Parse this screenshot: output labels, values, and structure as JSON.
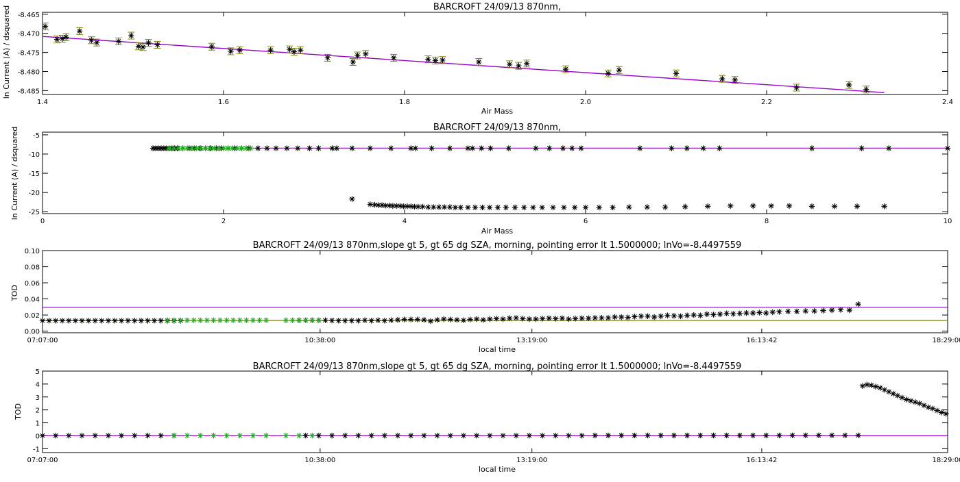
{
  "colors": {
    "axis": "#000000",
    "fit_line": "#9900cc",
    "error_bar": "#808000",
    "selected_points": "#22aa22",
    "points": "#000000",
    "baseline": "#808000"
  },
  "chart_data": [
    {
      "type": "scatter",
      "title": "BARCROFT 24/09/13 870nm,",
      "xlabel": "Air Mass",
      "ylabel": "ln Current (A) / dsquared",
      "xlim": [
        1.4,
        2.4
      ],
      "ylim": [
        -8.486,
        -8.4645
      ],
      "xticks": [
        "1.4",
        "1.6",
        "1.8",
        "2.0",
        "2.2",
        "2.4"
      ],
      "xtick_values": [
        1.4,
        1.6,
        1.8,
        2.0,
        2.2,
        2.4
      ],
      "yticks": [
        "-8.465",
        "-8.470",
        "-8.475",
        "-8.480",
        "-8.485"
      ],
      "ytick_values": [
        -8.465,
        -8.47,
        -8.475,
        -8.48,
        -8.485
      ],
      "fit_line": {
        "x": [
          1.4,
          2.33
        ],
        "y": [
          -8.4708,
          -8.4855
        ]
      },
      "errorbar_halfwidth": 0.0009,
      "x": [
        1.403,
        1.416,
        1.422,
        1.426,
        1.441,
        1.454,
        1.46,
        1.484,
        1.498,
        1.506,
        1.511,
        1.517,
        1.527,
        1.587,
        1.608,
        1.618,
        1.652,
        1.673,
        1.678,
        1.685,
        1.715,
        1.743,
        1.748,
        1.757,
        1.788,
        1.826,
        1.834,
        1.842,
        1.882,
        1.916,
        1.926,
        1.935,
        1.978,
        2.025,
        2.037,
        2.1,
        2.151,
        2.165,
        2.233,
        2.291,
        2.31
      ],
      "y": [
        -8.4682,
        -8.4716,
        -8.4714,
        -8.471,
        -8.4694,
        -8.4718,
        -8.4724,
        -8.4721,
        -8.4706,
        -8.4734,
        -8.4736,
        -8.4725,
        -8.473,
        -8.4735,
        -8.4747,
        -8.4744,
        -8.4744,
        -8.4742,
        -8.4748,
        -8.4744,
        -8.4764,
        -8.4775,
        -8.4758,
        -8.4754,
        -8.4764,
        -8.4768,
        -8.4771,
        -8.477,
        -8.4775,
        -8.4781,
        -8.4785,
        -8.4779,
        -8.4794,
        -8.4805,
        -8.4796,
        -8.4805,
        -8.4819,
        -8.4822,
        -8.4842,
        -8.4835,
        -8.4847
      ]
    },
    {
      "type": "scatter",
      "title": "BARCROFT 24/09/13 870nm,",
      "xlabel": "Air Mass",
      "ylabel": "ln Current (A) / dsquared",
      "xlim": [
        0,
        10
      ],
      "ylim": [
        -25.5,
        -4.3
      ],
      "xticks": [
        "0",
        "2",
        "4",
        "6",
        "8",
        "10"
      ],
      "xtick_values": [
        0,
        2,
        4,
        6,
        8,
        10
      ],
      "yticks": [
        "-5",
        "-10",
        "-15",
        "-20",
        "-25"
      ],
      "ytick_values": [
        -5,
        -10,
        -15,
        -20,
        -25
      ],
      "fit_line": {
        "x": [
          1.2,
          10
        ],
        "y": [
          -8.45,
          -8.45
        ]
      },
      "upper_branch": {
        "x": [
          1.22,
          1.25,
          1.28,
          1.31,
          1.34,
          1.37,
          1.4,
          1.43,
          1.46,
          1.49,
          1.55,
          1.62,
          1.68,
          1.74,
          1.8,
          1.86,
          1.92,
          1.98,
          2.05,
          2.12,
          2.2,
          2.28,
          2.38,
          2.48,
          2.58,
          2.7,
          2.82,
          2.95,
          3.05,
          3.2,
          3.25,
          3.42,
          3.62,
          3.85,
          4.07,
          4.12,
          4.3,
          4.5,
          4.7,
          4.75,
          4.85,
          4.95,
          5.15,
          5.45,
          5.6,
          5.75,
          5.85,
          5.95,
          6.6,
          6.95,
          7.12,
          7.3,
          7.48,
          8.5,
          9.05,
          9.35,
          10.0
        ],
        "y": [
          -8.5,
          -8.5,
          -8.5,
          -8.5,
          -8.5,
          -8.5,
          -8.5,
          -8.5,
          -8.5,
          -8.5,
          -8.5,
          -8.5,
          -8.5,
          -8.5,
          -8.5,
          -8.5,
          -8.5,
          -8.5,
          -8.5,
          -8.5,
          -8.5,
          -8.5,
          -8.5,
          -8.5,
          -8.5,
          -8.5,
          -8.5,
          -8.5,
          -8.5,
          -8.5,
          -8.5,
          -8.5,
          -8.5,
          -8.5,
          -8.5,
          -8.5,
          -8.5,
          -8.5,
          -8.5,
          -8.5,
          -8.5,
          -8.5,
          -8.5,
          -8.5,
          -8.5,
          -8.5,
          -8.5,
          -8.5,
          -8.5,
          -8.5,
          -8.5,
          -8.5,
          -8.5,
          -8.5,
          -8.5,
          -8.5,
          -8.5
        ]
      },
      "upper_branch_selected": {
        "x": [
          1.4,
          1.45,
          1.5,
          1.55,
          1.6,
          1.65,
          1.7,
          1.75,
          1.8,
          1.85,
          1.9,
          1.95,
          2.0,
          2.05,
          2.1,
          2.15,
          2.2,
          2.25,
          2.3
        ],
        "y": [
          -8.5,
          -8.5,
          -8.5,
          -8.5,
          -8.5,
          -8.5,
          -8.5,
          -8.5,
          -8.5,
          -8.5,
          -8.5,
          -8.5,
          -8.5,
          -8.5,
          -8.5,
          -8.5,
          -8.5,
          -8.5,
          -8.5
        ]
      },
      "lower_branch": {
        "x": [
          3.42,
          3.62,
          3.67,
          3.71,
          3.75,
          3.79,
          3.83,
          3.87,
          3.91,
          3.95,
          3.99,
          4.03,
          4.07,
          4.11,
          4.15,
          4.2,
          4.26,
          4.32,
          4.38,
          4.44,
          4.5,
          4.56,
          4.62,
          4.7,
          4.78,
          4.86,
          4.94,
          5.03,
          5.12,
          5.22,
          5.32,
          5.42,
          5.52,
          5.64,
          5.76,
          5.88,
          6.0,
          6.15,
          6.3,
          6.48,
          6.68,
          6.88,
          7.1,
          7.35,
          7.6,
          7.85,
          8.05,
          8.25,
          8.5,
          8.75,
          9.0,
          9.3
        ],
        "y": [
          -21.7,
          -23.1,
          -23.2,
          -23.3,
          -23.3,
          -23.4,
          -23.4,
          -23.5,
          -23.5,
          -23.5,
          -23.6,
          -23.6,
          -23.6,
          -23.7,
          -23.7,
          -23.7,
          -23.8,
          -23.8,
          -23.8,
          -23.8,
          -23.8,
          -23.9,
          -23.9,
          -23.9,
          -23.9,
          -23.9,
          -23.9,
          -23.9,
          -23.9,
          -23.9,
          -23.9,
          -23.9,
          -23.9,
          -23.9,
          -23.9,
          -23.9,
          -23.9,
          -23.9,
          -23.9,
          -23.8,
          -23.8,
          -23.8,
          -23.7,
          -23.6,
          -23.5,
          -23.5,
          -23.5,
          -23.5,
          -23.6,
          -23.6,
          -23.6,
          -23.6
        ]
      }
    },
    {
      "type": "scatter",
      "title": "BARCROFT 24/09/13 870nm,slope gt 5, gt 65 dg SZA, morning, pointing error lt 1.5000000; lnVo=-8.4497559",
      "xlabel": "local time",
      "ylabel": "TOD",
      "xlim": [
        0,
        41280
      ],
      "ylim": [
        -0.002,
        0.1
      ],
      "xticks": [
        "07:07:00",
        "10:38:00",
        "13:19:00",
        "16:13:42",
        "18:29:00"
      ],
      "xtick_values": [
        0,
        12660,
        22320,
        32802,
        41280
      ],
      "yticks": [
        "0.00",
        "0.02",
        "0.04",
        "0.06",
        "0.08",
        "0.10"
      ],
      "ytick_values": [
        0,
        0.02,
        0.04,
        0.06,
        0.08,
        0.1
      ],
      "hlines": [
        {
          "y": 0.0295,
          "color_key": "fit_line"
        },
        {
          "y": 0.0133,
          "color_key": "baseline"
        }
      ],
      "series": [
        {
          "color_key": "points",
          "time": [
            0,
            300,
            600,
            900,
            1200,
            1500,
            1800,
            2100,
            2400,
            2700,
            3000,
            3300,
            3600,
            3900,
            4200,
            4500,
            4800,
            5100,
            5400,
            5700,
            6000,
            6300,
            11700,
            12000,
            12300,
            12600,
            12900,
            13200,
            13500,
            13800,
            14100,
            14400,
            14700,
            15000,
            15300,
            15600,
            15900,
            16200,
            16500,
            16800,
            17100,
            17400,
            17700,
            18000,
            18300,
            18600,
            18900,
            19200,
            19500,
            19800,
            20100,
            20400,
            20700,
            21000,
            21300,
            21600,
            21900,
            22200,
            22500,
            22800,
            23100,
            23400,
            23700,
            24000,
            24300,
            24600,
            24900,
            25200,
            25500,
            25800,
            26100,
            26400,
            26700,
            27000,
            27300,
            27600,
            27900,
            28200,
            28500,
            28800,
            29100,
            29400,
            29700,
            30000,
            30300,
            30600,
            30900,
            31200,
            31500,
            31800,
            32100,
            32400,
            32700,
            33000,
            33300,
            33600,
            34000,
            34400,
            34800,
            35200,
            35600,
            36000,
            36400,
            36800,
            37200
          ],
          "tod": [
            0.013,
            0.013,
            0.013,
            0.013,
            0.013,
            0.013,
            0.013,
            0.013,
            0.013,
            0.013,
            0.013,
            0.013,
            0.013,
            0.013,
            0.013,
            0.013,
            0.013,
            0.013,
            0.013,
            0.013,
            0.013,
            0.013,
            0.0135,
            0.0135,
            0.0135,
            0.0135,
            0.0135,
            0.0132,
            0.013,
            0.013,
            0.013,
            0.013,
            0.0135,
            0.013,
            0.0135,
            0.013,
            0.0135,
            0.014,
            0.0145,
            0.0145,
            0.0145,
            0.014,
            0.0125,
            0.014,
            0.015,
            0.0145,
            0.014,
            0.0135,
            0.0145,
            0.015,
            0.014,
            0.015,
            0.0155,
            0.015,
            0.016,
            0.0165,
            0.0155,
            0.015,
            0.015,
            0.0155,
            0.016,
            0.0155,
            0.016,
            0.015,
            0.0155,
            0.016,
            0.016,
            0.0165,
            0.0165,
            0.0165,
            0.0175,
            0.0175,
            0.017,
            0.018,
            0.0185,
            0.0185,
            0.0175,
            0.0185,
            0.0195,
            0.019,
            0.0185,
            0.0195,
            0.02,
            0.0195,
            0.021,
            0.0205,
            0.021,
            0.022,
            0.0215,
            0.022,
            0.0225,
            0.0225,
            0.023,
            0.0225,
            0.0235,
            0.024,
            0.0245,
            0.0245,
            0.025,
            0.025,
            0.0255,
            0.026,
            0.0265,
            0.026,
            0.0335
          ]
        },
        {
          "color_key": "selected_points",
          "time": [
            5700,
            6000,
            6300,
            6600,
            6900,
            7200,
            7500,
            7800,
            8100,
            8400,
            8700,
            9000,
            9300,
            9600,
            9900,
            10200,
            11100,
            11400,
            11700,
            12000,
            12300,
            12600
          ],
          "tod": [
            0.0135,
            0.0135,
            0.0135,
            0.0135,
            0.0135,
            0.0135,
            0.0135,
            0.0135,
            0.0135,
            0.0135,
            0.0135,
            0.0135,
            0.0135,
            0.0135,
            0.0135,
            0.0135,
            0.0135,
            0.0135,
            0.0135,
            0.0135,
            0.0135,
            0.0135
          ]
        }
      ]
    },
    {
      "type": "scatter",
      "title": "BARCROFT 24/09/13 870nm,slope gt 5, gt 65 dg SZA, morning, pointing error lt 1.5000000; lnVo=-8.4497559",
      "xlabel": "local time",
      "ylabel": "TOD",
      "xlim": [
        0,
        41280
      ],
      "ylim": [
        -1.3,
        5.0
      ],
      "xticks": [
        "07:07:00",
        "10:38:00",
        "13:19:00",
        "16:13:42",
        "18:29:00"
      ],
      "xtick_values": [
        0,
        12660,
        22320,
        32802,
        41280
      ],
      "yticks": [
        "-1",
        "0",
        "1",
        "2",
        "3",
        "4",
        "5"
      ],
      "ytick_values": [
        -1,
        0,
        1,
        2,
        3,
        4,
        5
      ],
      "hlines": [
        {
          "y": 0.0,
          "color_key": "fit_line"
        }
      ],
      "series": [
        {
          "color_key": "points",
          "time": [
            0,
            600,
            1200,
            1800,
            2400,
            3000,
            3600,
            4200,
            4800,
            5400,
            6000,
            12000,
            12600,
            13200,
            13800,
            14400,
            15000,
            15600,
            16200,
            16800,
            17400,
            18000,
            18600,
            19200,
            19800,
            20400,
            21000,
            21600,
            22200,
            22800,
            23400,
            24000,
            24600,
            25200,
            25800,
            26400,
            27000,
            27600,
            28200,
            28800,
            29400,
            30000,
            30600,
            31200,
            31800,
            32400,
            33000,
            33600,
            34200,
            34800,
            35400,
            36000,
            36600,
            37200
          ],
          "tod": [
            0.01,
            0.01,
            0.01,
            0.01,
            0.01,
            0.01,
            0.01,
            0.01,
            0.01,
            0.01,
            0.01,
            0.01,
            0.01,
            0.01,
            0.01,
            0.01,
            0.01,
            0.01,
            0.01,
            0.01,
            0.01,
            0.01,
            0.01,
            0.01,
            0.01,
            0.01,
            0.01,
            0.01,
            0.01,
            0.01,
            0.01,
            0.01,
            0.01,
            0.02,
            0.02,
            0.02,
            0.02,
            0.02,
            0.02,
            0.02,
            0.02,
            0.02,
            0.02,
            0.02,
            0.02,
            0.02,
            0.02,
            0.02,
            0.03,
            0.03,
            0.03,
            0.03,
            0.03,
            0.03
          ]
        },
        {
          "color_key": "selected_points",
          "time": [
            6000,
            6600,
            7200,
            7800,
            8400,
            9000,
            9600,
            10200,
            11100,
            11700,
            12300
          ],
          "tod": [
            0.01,
            0.01,
            0.01,
            0.01,
            0.01,
            0.01,
            0.01,
            0.01,
            0.01,
            0.01,
            0.01
          ]
        },
        {
          "color_key": "points",
          "time": [
            37400,
            37600,
            37800,
            38000,
            38200,
            38400,
            38600,
            38800,
            39000,
            39200,
            39400,
            39600,
            39800,
            40000,
            40200,
            40400,
            40600,
            40800,
            41000,
            41200
          ],
          "tod": [
            3.85,
            3.95,
            3.9,
            3.8,
            3.7,
            3.55,
            3.4,
            3.25,
            3.1,
            2.95,
            2.8,
            2.7,
            2.6,
            2.5,
            2.35,
            2.2,
            2.1,
            1.95,
            1.8,
            1.7
          ]
        }
      ]
    }
  ]
}
